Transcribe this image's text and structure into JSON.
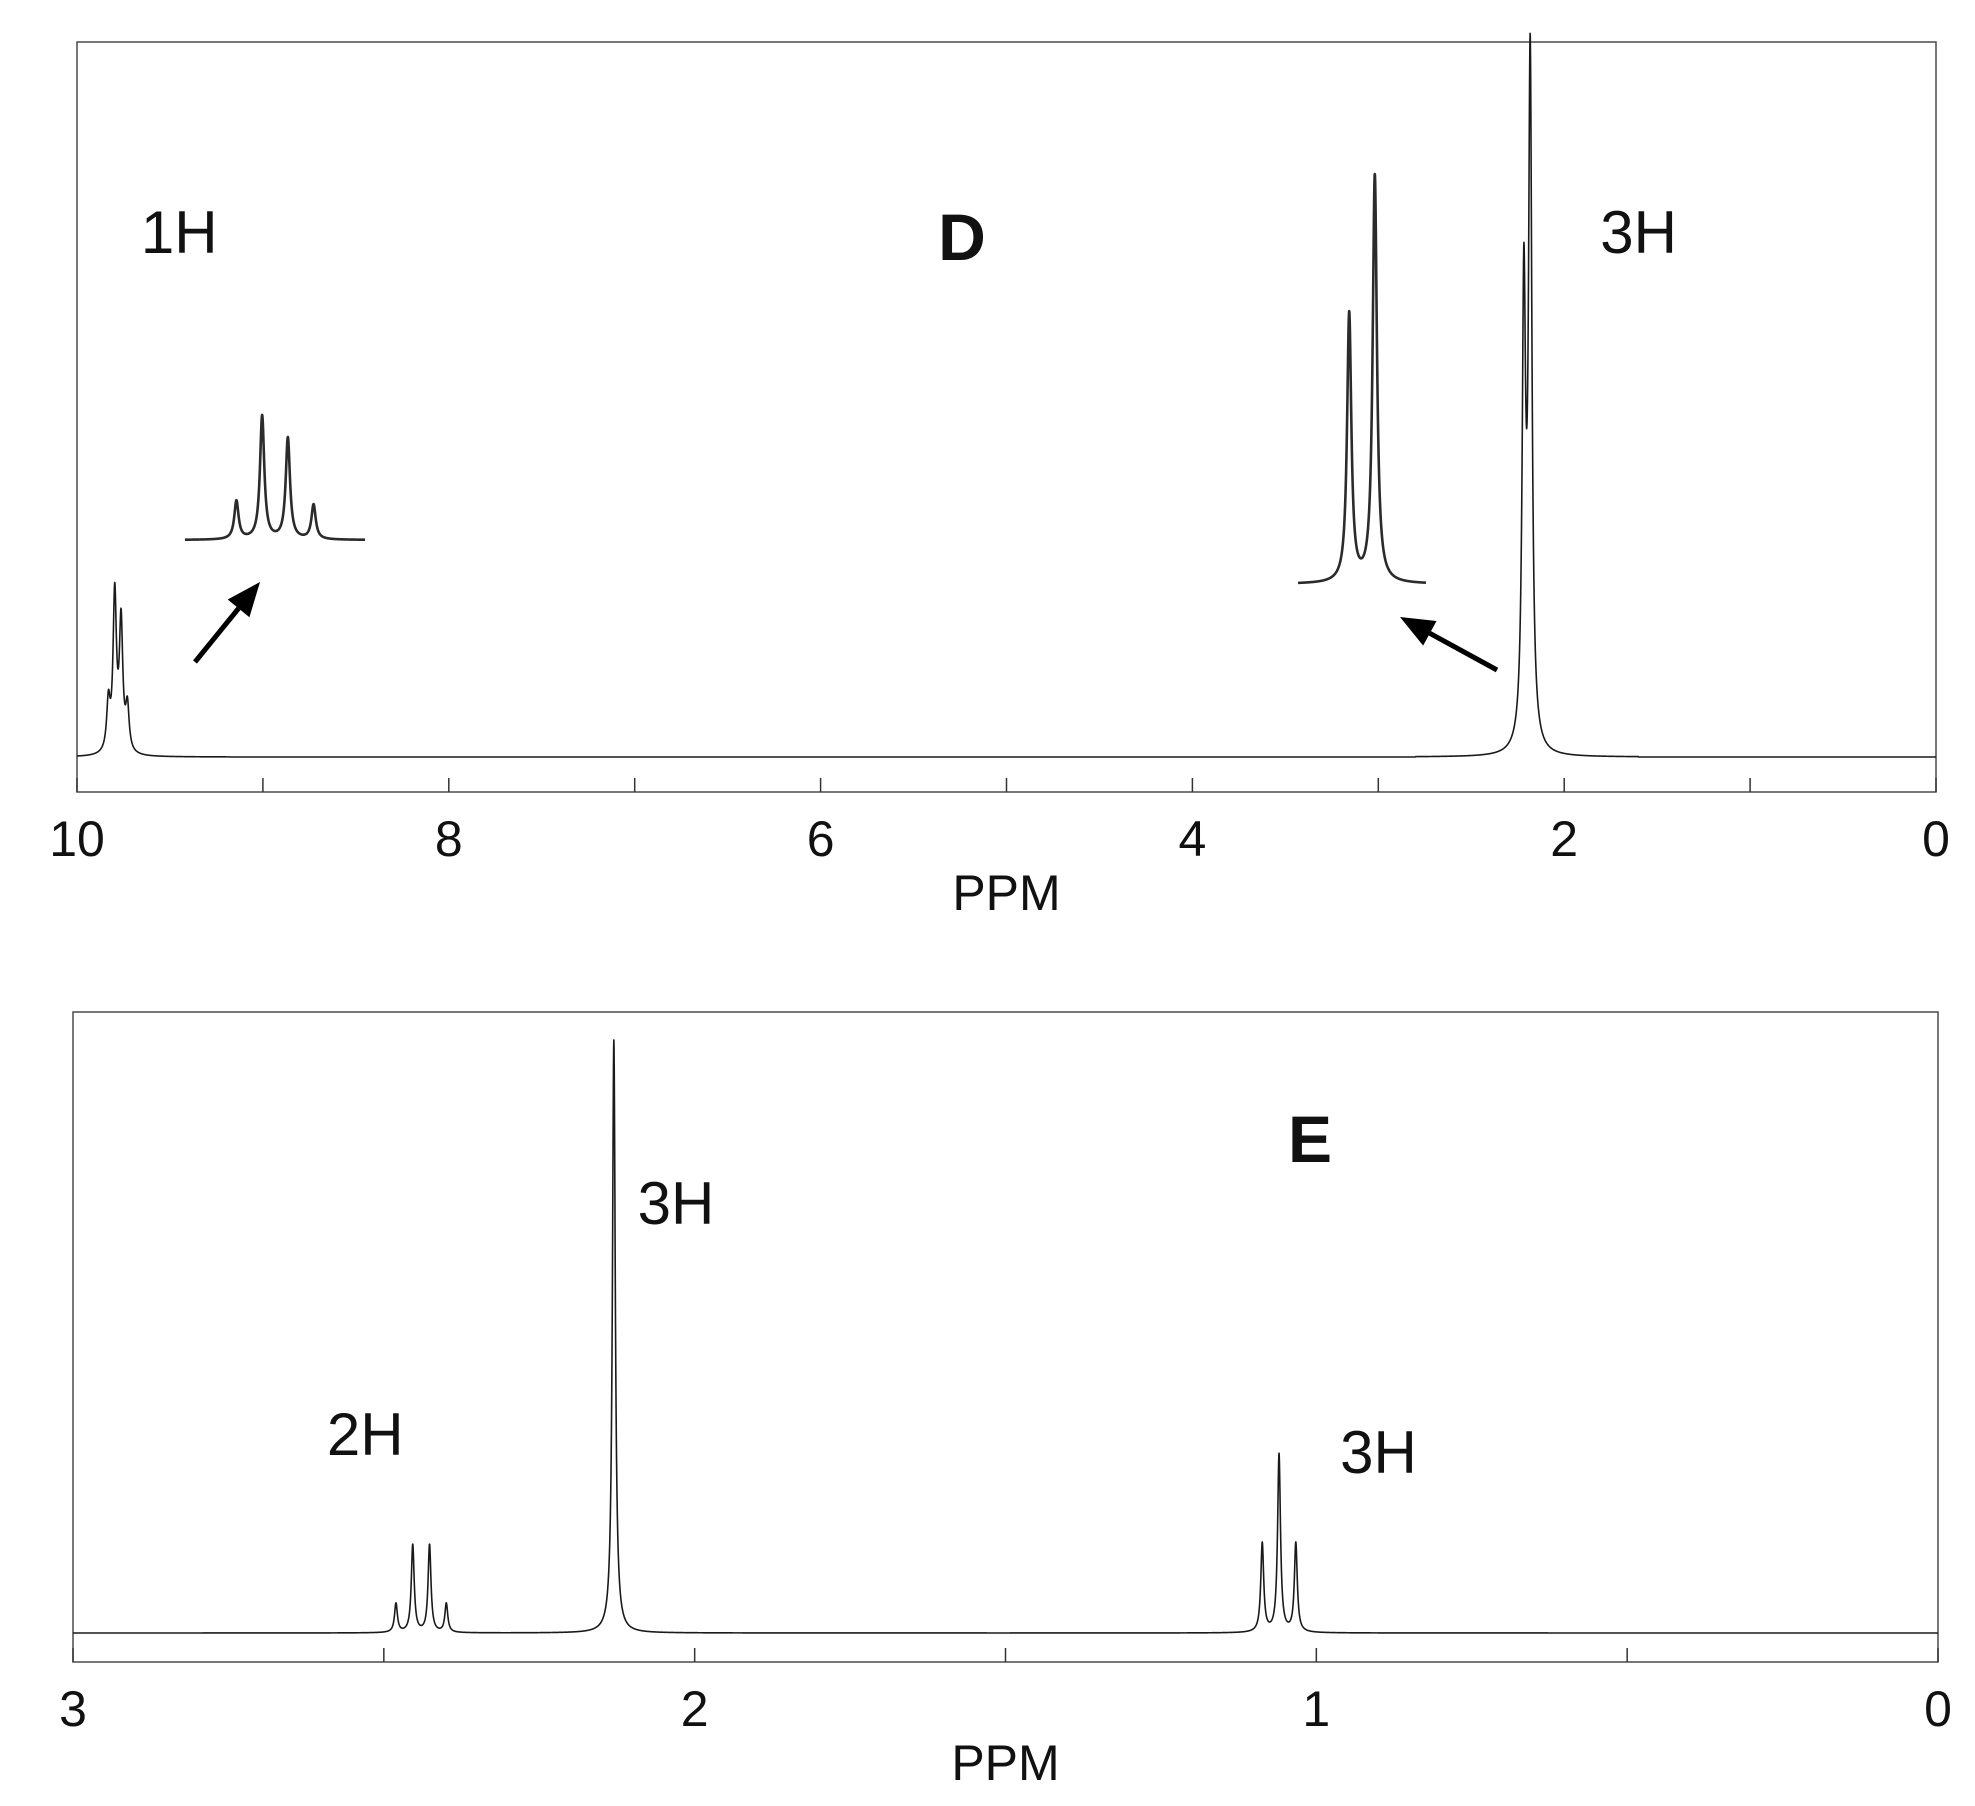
{
  "chart_data": [
    {
      "type": "line",
      "panel_label": "D",
      "xlabel": "PPM",
      "xlim": [
        10,
        0
      ],
      "x_ticks": [
        10,
        8,
        6,
        4,
        2,
        0
      ],
      "x_minor_ticks": [
        9,
        7,
        5,
        3,
        1
      ],
      "grid": false,
      "peaks": [
        {
          "center": 9.78,
          "multiplicity": "quartet",
          "spacing": 0.034,
          "relative_heights": [
            0.28,
            0.82,
            1.0,
            0.31
          ],
          "height": 0.23
        },
        {
          "center": 2.2,
          "multiplicity": "doublet",
          "spacing": 0.034,
          "relative_heights": [
            1.0,
            0.66
          ],
          "height": 1.0
        }
      ],
      "annotations": [
        {
          "text": "1H",
          "x": 9.45,
          "y": 0.74
        },
        {
          "text": "3H",
          "x": 1.6,
          "y": 0.74
        }
      ],
      "insets": [
        {
          "name": "quartet-expansion",
          "for_peak": 9.78
        },
        {
          "name": "doublet-expansion",
          "for_peak": 2.2
        }
      ]
    },
    {
      "type": "line",
      "panel_label": "E",
      "xlabel": "PPM",
      "xlim": [
        3,
        0
      ],
      "x_ticks": [
        3,
        2,
        1,
        0
      ],
      "x_minor_ticks": [
        2.5,
        1.5,
        0.5
      ],
      "grid": false,
      "peaks": [
        {
          "center": 2.44,
          "multiplicity": "quartet",
          "spacing": 0.027,
          "relative_heights": [
            0.33,
            1.0,
            1.0,
            0.33
          ],
          "height": 0.148
        },
        {
          "center": 2.13,
          "multiplicity": "singlet",
          "spacing": 0,
          "relative_heights": [
            1.0
          ],
          "height": 1.0
        },
        {
          "center": 1.06,
          "multiplicity": "triplet",
          "spacing": 0.027,
          "relative_heights": [
            0.5,
            1.0,
            0.5
          ],
          "height": 0.3
        }
      ],
      "annotations": [
        {
          "text": "2H",
          "x": 2.53,
          "y": 0.3
        },
        {
          "text": "3H",
          "x": 2.03,
          "y": 0.69
        },
        {
          "text": "3H",
          "x": 0.9,
          "y": 0.27
        }
      ]
    }
  ]
}
